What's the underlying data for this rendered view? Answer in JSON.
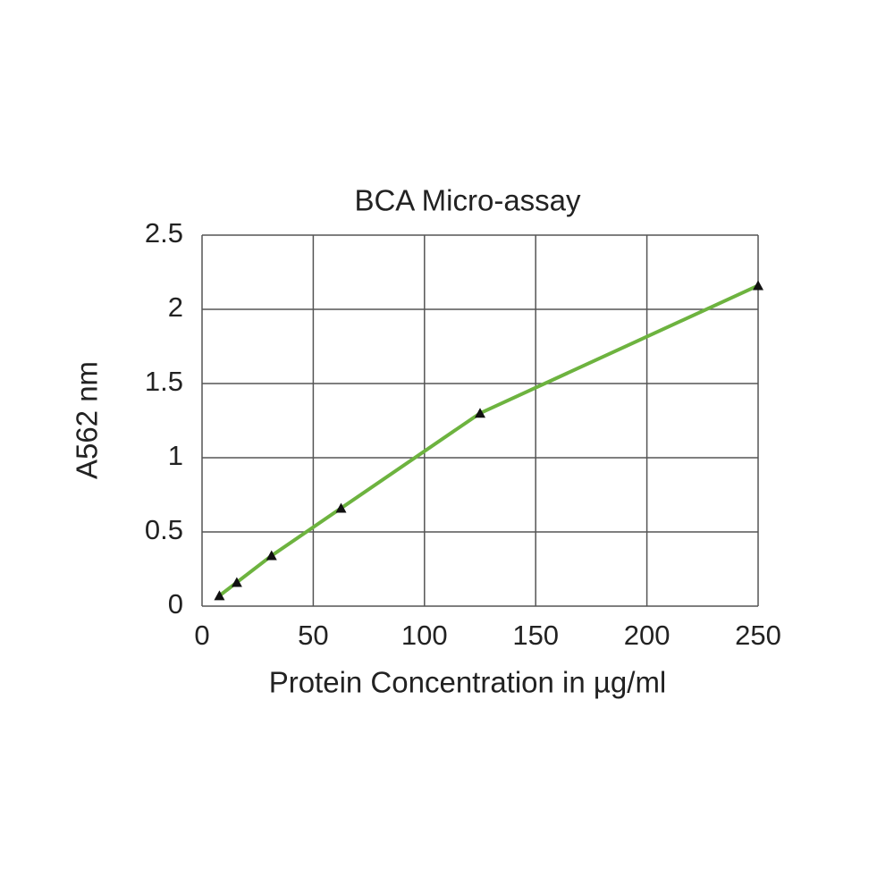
{
  "chart_data": {
    "type": "line",
    "title": "BCA Micro-assay",
    "x_label": "Protein Concentration in µg/ml",
    "y_label": "A562 nm",
    "x": [
      7.8125,
      15.625,
      31.25,
      62.5,
      125,
      250
    ],
    "series": [
      {
        "color": "#6db33f",
        "marker_color": "#111111",
        "values": [
          0.07,
          0.16,
          0.34,
          0.66,
          1.3,
          2.16
        ]
      }
    ],
    "xlim": [
      0,
      250
    ],
    "xticks": [
      0,
      50,
      100,
      150,
      200,
      250
    ],
    "ylim": [
      0,
      2.5
    ],
    "yticks": [
      0,
      0.5,
      1,
      1.5,
      2,
      2.5
    ],
    "grid": true
  }
}
